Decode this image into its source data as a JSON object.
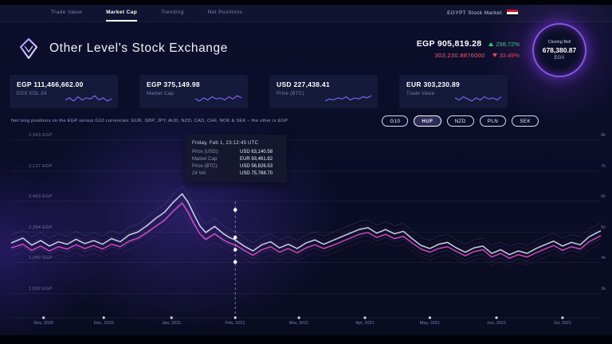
{
  "nav": {
    "items": [
      {
        "label": "Trade Value",
        "active": false
      },
      {
        "label": "Market Cap",
        "active": true
      },
      {
        "label": "Trending",
        "active": false
      },
      {
        "label": "Net Positions",
        "active": false
      }
    ],
    "market": "EGYPT Stock Market"
  },
  "header": {
    "title": "Other Level's Stock Exchange",
    "price": "EGP 905,819.28",
    "price_change": "298.72%",
    "secondary": "303,230.8876000",
    "secondary_change": "33.49%",
    "bell": {
      "label": "Closing Bell",
      "value": "678,380.87",
      "unit": "EGX"
    }
  },
  "stats": [
    {
      "value": "EGP 111,466,662.00",
      "label": "EGX VOL 24",
      "spark": [
        4,
        6,
        3,
        7,
        4,
        6,
        5,
        8,
        4,
        6,
        3,
        5
      ]
    },
    {
      "value": "EGP 375,149.98",
      "label": "Market Cap",
      "spark": [
        5,
        3,
        6,
        4,
        7,
        5,
        6,
        4,
        7,
        5,
        8,
        6
      ]
    },
    {
      "value": "USD 227,438.41",
      "label": "Price (BTC)",
      "spark": [
        3,
        5,
        4,
        6,
        5,
        7,
        4,
        6,
        5,
        7,
        6,
        8
      ]
    },
    {
      "value": "EUR 303,230.89",
      "label": "Trade Value",
      "spark": [
        6,
        4,
        7,
        5,
        3,
        6,
        4,
        7,
        5,
        6,
        4,
        7
      ]
    }
  ],
  "note": "Net long positions on the EGP versus G10 currencies: EUR, GBP, JPY, AUD, NZD, CAD, CHF, NOK & SEK – the other is EGP",
  "filters": {
    "items": [
      {
        "label": "G10",
        "active": false
      },
      {
        "label": "HUF",
        "active": true
      },
      {
        "label": "NZD",
        "active": false
      },
      {
        "label": "PLN",
        "active": false
      },
      {
        "label": "SEK",
        "active": false
      }
    ]
  },
  "tooltip": {
    "title": "Friday, Feb 1, 23:12:45 UTC",
    "rows": [
      {
        "label": "Price (USD):",
        "value": "USD 63,140.58"
      },
      {
        "label": "Market Cap:",
        "value": "EUR 93,461.82"
      },
      {
        "label": "Price (BTC):",
        "value": "USD 56,826.53"
      },
      {
        "label": "24 Vol:",
        "value": "USD 75,768.70"
      }
    ]
  },
  "colors": {
    "accent_purple": "#7d6bff",
    "magenta_line": "#e84fd0",
    "white_line": "#e8ecff",
    "green": "#2bd67b",
    "red": "#f43f5e"
  },
  "chart_data": {
    "type": "line",
    "title": "EGX price history",
    "x_axis": [
      "Nov, 2020",
      "Dec, 2020",
      "Jan, 2021",
      "Feb, 2021",
      "Mar, 2021",
      "Apr, 2021",
      "May, 2021",
      "Jun, 2021",
      "Jul, 2021"
    ],
    "x_tick_pos": [
      5.5,
      15.7,
      27.2,
      38,
      48.8,
      60,
      71,
      82.3,
      93.5
    ],
    "y_left": [
      "3,343 EGP",
      "3,127 EGP",
      "2,453 EGP",
      "2,394 EGP",
      "1,349 EGP",
      "1,592 EGP"
    ],
    "y_right": [
      "8k",
      "7k",
      "6k",
      "5k",
      "4k",
      "3k"
    ],
    "y_range": [
      3,
      8
    ],
    "grid": true,
    "cursor": {
      "x": 38,
      "markers": [
        5.7,
        4.8,
        4.4,
        4.0
      ]
    },
    "series": [
      {
        "name": "Price",
        "color": "#e8ecff",
        "points": [
          [
            0,
            4.62
          ],
          [
            2,
            4.78
          ],
          [
            3.5,
            4.55
          ],
          [
            5,
            4.7
          ],
          [
            6.5,
            4.52
          ],
          [
            8,
            4.66
          ],
          [
            9.5,
            4.58
          ],
          [
            11,
            4.74
          ],
          [
            12.5,
            4.6
          ],
          [
            14,
            4.7
          ],
          [
            15.5,
            4.58
          ],
          [
            17,
            4.76
          ],
          [
            18.5,
            4.66
          ],
          [
            20,
            4.88
          ],
          [
            21.5,
            4.98
          ],
          [
            23,
            5.18
          ],
          [
            24.5,
            5.42
          ],
          [
            26,
            5.62
          ],
          [
            27.5,
            5.95
          ],
          [
            29,
            6.22
          ],
          [
            30,
            5.95
          ],
          [
            31,
            5.55
          ],
          [
            32,
            5.18
          ],
          [
            33,
            4.96
          ],
          [
            34.5,
            5.16
          ],
          [
            36,
            4.92
          ],
          [
            37,
            4.8
          ],
          [
            38,
            4.72
          ],
          [
            39.5,
            4.52
          ],
          [
            41,
            4.36
          ],
          [
            42.5,
            4.56
          ],
          [
            44,
            4.66
          ],
          [
            45.5,
            4.46
          ],
          [
            47,
            4.58
          ],
          [
            48.5,
            4.44
          ],
          [
            50,
            4.62
          ],
          [
            51.5,
            4.72
          ],
          [
            53,
            4.58
          ],
          [
            54.5,
            4.7
          ],
          [
            56,
            4.82
          ],
          [
            57.5,
            4.94
          ],
          [
            59,
            5.06
          ],
          [
            60.5,
            5.12
          ],
          [
            62,
            4.94
          ],
          [
            63.5,
            5.06
          ],
          [
            65,
            4.92
          ],
          [
            66.5,
            5.0
          ],
          [
            68,
            4.76
          ],
          [
            69.5,
            4.54
          ],
          [
            71,
            4.44
          ],
          [
            72.5,
            4.58
          ],
          [
            74,
            4.64
          ],
          [
            75.5,
            4.46
          ],
          [
            77,
            4.32
          ],
          [
            78.5,
            4.46
          ],
          [
            80,
            4.52
          ],
          [
            81.5,
            4.28
          ],
          [
            83,
            4.4
          ],
          [
            84.5,
            4.24
          ],
          [
            86,
            4.36
          ],
          [
            87.5,
            4.28
          ],
          [
            89,
            4.44
          ],
          [
            90.5,
            4.56
          ],
          [
            92,
            4.68
          ],
          [
            93.5,
            4.52
          ],
          [
            95,
            4.64
          ],
          [
            96.5,
            4.56
          ],
          [
            98,
            4.82
          ],
          [
            100,
            5.02
          ]
        ]
      },
      {
        "name": "Market Cap",
        "color": "#e84fd0",
        "points": [
          [
            0,
            4.46
          ],
          [
            2,
            4.58
          ],
          [
            3.5,
            4.38
          ],
          [
            5,
            4.52
          ],
          [
            6.5,
            4.36
          ],
          [
            8,
            4.5
          ],
          [
            9.5,
            4.42
          ],
          [
            11,
            4.56
          ],
          [
            12.5,
            4.44
          ],
          [
            14,
            4.54
          ],
          [
            15.5,
            4.42
          ],
          [
            17,
            4.58
          ],
          [
            18.5,
            4.5
          ],
          [
            20,
            4.68
          ],
          [
            21.5,
            4.78
          ],
          [
            23,
            4.96
          ],
          [
            24.5,
            5.16
          ],
          [
            26,
            5.36
          ],
          [
            27.5,
            5.66
          ],
          [
            29,
            5.92
          ],
          [
            30,
            5.62
          ],
          [
            31,
            5.24
          ],
          [
            32,
            4.92
          ],
          [
            33,
            4.74
          ],
          [
            34.5,
            4.92
          ],
          [
            36,
            4.72
          ],
          [
            37,
            4.62
          ],
          [
            38,
            4.56
          ],
          [
            39.5,
            4.38
          ],
          [
            41,
            4.22
          ],
          [
            42.5,
            4.4
          ],
          [
            44,
            4.5
          ],
          [
            45.5,
            4.32
          ],
          [
            47,
            4.44
          ],
          [
            48.5,
            4.3
          ],
          [
            50,
            4.46
          ],
          [
            51.5,
            4.56
          ],
          [
            53,
            4.44
          ],
          [
            54.5,
            4.54
          ],
          [
            56,
            4.66
          ],
          [
            57.5,
            4.78
          ],
          [
            59,
            4.9
          ],
          [
            60.5,
            4.96
          ],
          [
            62,
            4.8
          ],
          [
            63.5,
            4.9
          ],
          [
            65,
            4.76
          ],
          [
            66.5,
            4.84
          ],
          [
            68,
            4.62
          ],
          [
            69.5,
            4.42
          ],
          [
            71,
            4.32
          ],
          [
            72.5,
            4.44
          ],
          [
            74,
            4.5
          ],
          [
            75.5,
            4.34
          ],
          [
            77,
            4.2
          ],
          [
            78.5,
            4.34
          ],
          [
            80,
            4.4
          ],
          [
            81.5,
            4.16
          ],
          [
            83,
            4.28
          ],
          [
            84.5,
            4.12
          ],
          [
            86,
            4.24
          ],
          [
            87.5,
            4.16
          ],
          [
            89,
            4.3
          ],
          [
            90.5,
            4.42
          ],
          [
            92,
            4.54
          ],
          [
            93.5,
            4.38
          ],
          [
            95,
            4.5
          ],
          [
            96.5,
            4.42
          ],
          [
            98,
            4.66
          ],
          [
            100,
            4.86
          ]
        ]
      }
    ]
  }
}
